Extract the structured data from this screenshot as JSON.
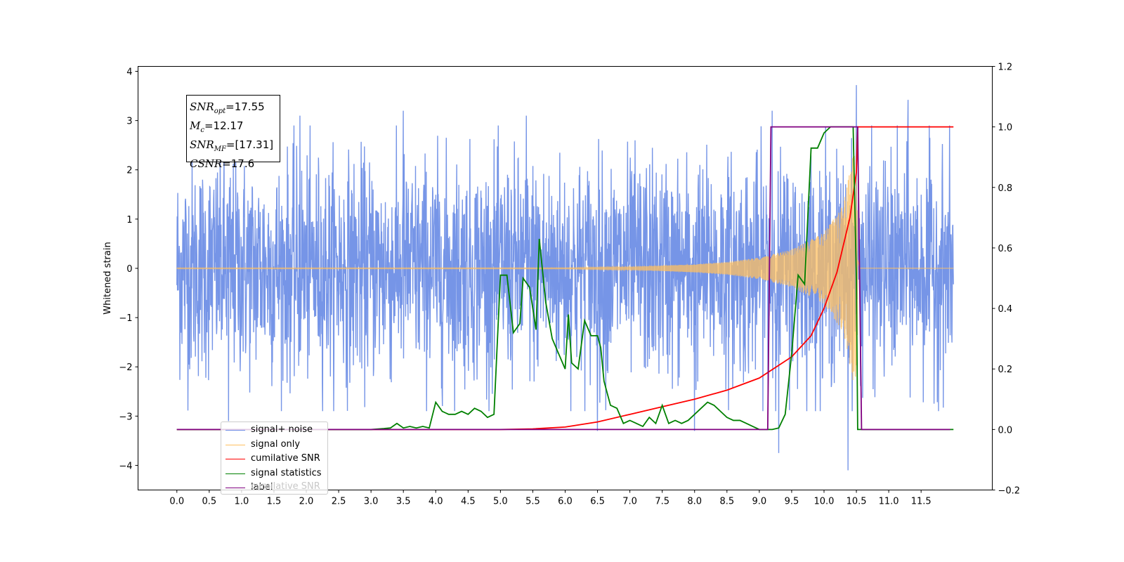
{
  "chart_data": {
    "type": "line",
    "ylabel": "Whitened strain",
    "xlim": [
      -0.6,
      12.6
    ],
    "ylim_left": [
      -4.5,
      4.1
    ],
    "ylim_right": [
      -0.2,
      1.2
    ],
    "x_ticks": [
      0.0,
      0.5,
      1.0,
      1.5,
      2.0,
      2.5,
      3.0,
      3.5,
      4.0,
      4.5,
      5.0,
      5.5,
      6.0,
      6.5,
      7.0,
      7.5,
      8.0,
      8.5,
      9.0,
      9.5,
      10.0,
      10.5,
      11.0,
      11.5
    ],
    "x_tick_labels": [
      "0.0",
      "0.5",
      "1.0",
      "1.5",
      "2.0",
      "2.5",
      "3.0",
      "3.5",
      "4.0",
      "4.5",
      "5.0",
      "5.5",
      "6.0",
      "6.5",
      "7.0",
      "7.5",
      "8.0",
      "8.5",
      "9.0",
      "9.5",
      "10.0",
      "10.5",
      "11.0",
      "11.5"
    ],
    "y_ticks_left": [
      -4,
      -3,
      -2,
      -1,
      0,
      1,
      2,
      3,
      4
    ],
    "y_tick_labels_left": [
      "−4",
      "−3",
      "−2",
      "−1",
      "0",
      "1",
      "2",
      "3",
      "4"
    ],
    "y_ticks_right": [
      -0.2,
      0.0,
      0.2,
      0.4,
      0.6,
      0.8,
      1.0,
      1.2
    ],
    "y_tick_labels_right": [
      "−0.2",
      "0.0",
      "0.2",
      "0.4",
      "0.6",
      "0.8",
      "1.0",
      "1.2"
    ],
    "annotation": {
      "snr_opt": "=17.55",
      "mc": "=12.17",
      "snr_mf": "=[17.31]",
      "csnr": "=17.6"
    },
    "legend": {
      "placement": "lower-left",
      "entries": [
        {
          "label": "signal+ noise",
          "color": "#6f8fe6"
        },
        {
          "label": "signal only",
          "color": "#ffc060"
        },
        {
          "label": "cumilative SNR",
          "color": "#ff0000"
        },
        {
          "label": "signal statistics",
          "color": "#008000"
        },
        {
          "label": "label",
          "color": "#800080"
        }
      ],
      "hidden_text": "cumilative SNR"
    },
    "series": [
      {
        "name": "signal+ noise",
        "axis": "left",
        "color": "#6f8fe6",
        "x_range": [
          0.0,
          12.0
        ],
        "envelope_typical": 2.0,
        "peaks": [
          [
            10.5,
            3.72
          ],
          [
            10.37,
            -4.1
          ],
          [
            9.3,
            -3.75
          ],
          [
            11.3,
            3.42
          ],
          [
            1.9,
            3.1
          ],
          [
            9.2,
            3.2
          ],
          [
            3.5,
            3.2
          ],
          [
            5.4,
            3.1
          ],
          [
            6.5,
            -3.3
          ],
          [
            8.0,
            -3.3
          ],
          [
            0.8,
            -3.1
          ]
        ]
      },
      {
        "name": "signal only",
        "axis": "left",
        "color": "#ffc060",
        "x_range": [
          0.0,
          12.0
        ],
        "merger_time": 10.52,
        "envelope": [
          [
            6.0,
            0.01
          ],
          [
            7.0,
            0.03
          ],
          [
            8.0,
            0.08
          ],
          [
            8.5,
            0.13
          ],
          [
            9.0,
            0.22
          ],
          [
            9.5,
            0.38
          ],
          [
            10.0,
            0.72
          ],
          [
            10.3,
            1.3
          ],
          [
            10.45,
            2.3
          ],
          [
            10.52,
            2.5
          ],
          [
            10.55,
            0.05
          ],
          [
            12.0,
            0.02
          ]
        ]
      },
      {
        "name": "cumilative SNR",
        "axis": "right",
        "color": "#ff0000",
        "x": [
          0.0,
          5.0,
          5.5,
          6.0,
          6.5,
          7.0,
          7.5,
          8.0,
          8.5,
          9.0,
          9.5,
          9.8,
          10.0,
          10.2,
          10.4,
          10.5,
          10.52,
          12.0
        ],
        "y": [
          0.0,
          0.0,
          0.002,
          0.008,
          0.025,
          0.05,
          0.075,
          0.1,
          0.13,
          0.17,
          0.24,
          0.31,
          0.4,
          0.52,
          0.7,
          0.85,
          1.0,
          1.0
        ]
      },
      {
        "name": "signal statistics",
        "axis": "right",
        "color": "#008000",
        "x": [
          0.0,
          3.0,
          3.2,
          3.3,
          3.4,
          3.5,
          3.6,
          3.7,
          3.8,
          3.9,
          4.0,
          4.1,
          4.2,
          4.3,
          4.4,
          4.5,
          4.6,
          4.7,
          4.8,
          4.9,
          5.0,
          5.1,
          5.2,
          5.3,
          5.35,
          5.45,
          5.55,
          5.6,
          5.7,
          5.8,
          5.9,
          6.0,
          6.05,
          6.1,
          6.2,
          6.3,
          6.4,
          6.5,
          6.55,
          6.6,
          6.7,
          6.8,
          6.9,
          7.0,
          7.1,
          7.2,
          7.3,
          7.4,
          7.5,
          7.6,
          7.7,
          7.8,
          7.9,
          8.0,
          8.1,
          8.2,
          8.3,
          8.4,
          8.5,
          8.6,
          8.7,
          8.8,
          8.9,
          9.0,
          9.1,
          9.2,
          9.3,
          9.4,
          9.5,
          9.6,
          9.7,
          9.8,
          9.9,
          10.0,
          10.1,
          10.2,
          10.3,
          10.4,
          10.45,
          10.5,
          10.52,
          12.0
        ],
        "y": [
          0.0,
          0.0,
          0.003,
          0.005,
          0.02,
          0.005,
          0.01,
          0.005,
          0.01,
          0.005,
          0.09,
          0.06,
          0.05,
          0.05,
          0.06,
          0.05,
          0.07,
          0.06,
          0.04,
          0.05,
          0.51,
          0.51,
          0.32,
          0.35,
          0.5,
          0.47,
          0.33,
          0.63,
          0.42,
          0.3,
          0.25,
          0.2,
          0.38,
          0.22,
          0.2,
          0.36,
          0.31,
          0.31,
          0.27,
          0.16,
          0.08,
          0.07,
          0.02,
          0.03,
          0.02,
          0.01,
          0.04,
          0.02,
          0.08,
          0.02,
          0.03,
          0.02,
          0.03,
          0.05,
          0.07,
          0.09,
          0.08,
          0.06,
          0.04,
          0.03,
          0.03,
          0.02,
          0.01,
          0.0,
          0.0,
          0.0,
          0.005,
          0.05,
          0.25,
          0.51,
          0.48,
          0.93,
          0.93,
          0.98,
          1.0,
          1.0,
          1.0,
          1.0,
          1.0,
          0.5,
          0.0,
          0.0
        ]
      },
      {
        "name": "label",
        "axis": "right",
        "color": "#800080",
        "x": [
          0.0,
          9.13,
          9.18,
          10.52,
          10.58,
          11.95
        ],
        "y": [
          0.0,
          0.0,
          1.0,
          1.0,
          0.0,
          0.0
        ]
      }
    ]
  }
}
